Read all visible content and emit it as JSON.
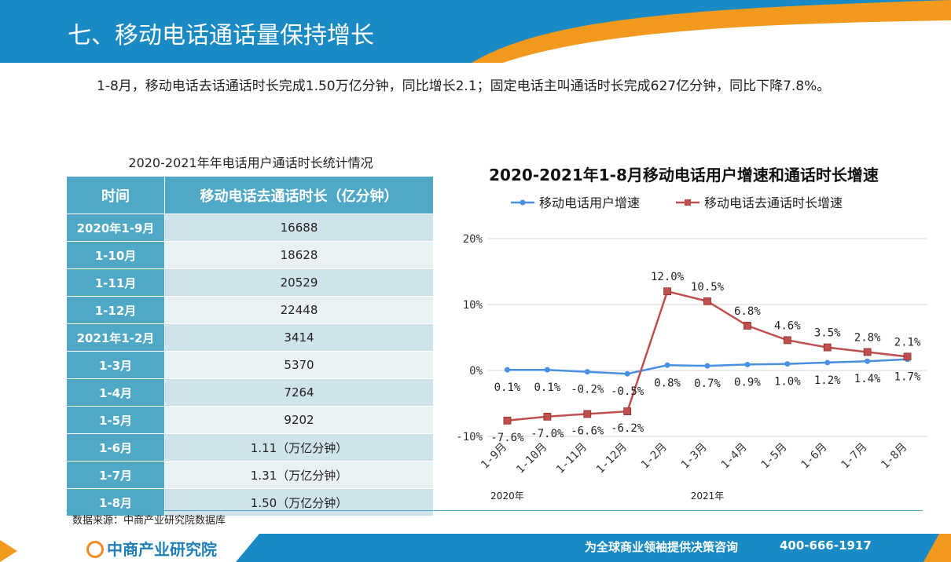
{
  "header": {
    "title": "七、移动电话通话量保持增长"
  },
  "intro": {
    "text": "1-8月，移动电话去话通话时长完成1.50万亿分钟，同比增长2.1；固定电话主叫通话时长完成627亿分钟，同比下降7.8%。"
  },
  "table": {
    "title": "2020-2021年年电话用户通话时长统计情况",
    "headers": [
      "时间",
      "移动电话去通话时长（亿分钟）"
    ],
    "rows": [
      [
        "2020年1-9月",
        "16688"
      ],
      [
        "1-10月",
        "18628"
      ],
      [
        "1-11月",
        "20529"
      ],
      [
        "1-12月",
        "22448"
      ],
      [
        "2021年1-2月",
        "3414"
      ],
      [
        "1-3月",
        "5370"
      ],
      [
        "1-4月",
        "7264"
      ],
      [
        "1-5月",
        "9202"
      ],
      [
        "1-6月",
        "1.11（万亿分钟）"
      ],
      [
        "1-7月",
        "1.31（万亿分钟）"
      ],
      [
        "1-8月",
        "1.50（万亿分钟）"
      ]
    ]
  },
  "source": "数据来源：中商产业研究院数据库",
  "footer": {
    "logo": "中商产业研究院",
    "slogan": "为全球商业领袖提供决策咨询",
    "phone": "400-666-1917"
  },
  "colors": {
    "header_blue": "#1a8ac4",
    "accent_orange": "#f39a1e",
    "table_blue": "#4fa9c6",
    "series_users": "#4a90e2",
    "series_minutes": "#c0504d"
  },
  "chart_data": {
    "type": "line",
    "title": "2020-2021年1-8月移动电话用户增速和通话时长增速",
    "categories": [
      "1-9月",
      "1-10月",
      "1-11月",
      "1-12月",
      "1-2月",
      "1-3月",
      "1-4月",
      "1-5月",
      "1-6月",
      "1-7月",
      "1-8月"
    ],
    "year_labels": [
      {
        "label": "2020年",
        "at": "1-9月"
      },
      {
        "label": "2021年",
        "at": "1-3月"
      }
    ],
    "series": [
      {
        "name": "移动电话用户增速",
        "values": [
          0.1,
          0.1,
          -0.2,
          -0.5,
          0.8,
          0.7,
          0.9,
          1.0,
          1.2,
          1.4,
          1.7
        ],
        "labels": [
          "0.1%",
          "0.1%",
          "-0.2%",
          "-0.5%",
          "0.8%",
          "0.7%",
          "0.9%",
          "1.0%",
          "1.2%",
          "1.4%",
          "1.7%"
        ],
        "color": "#4a90e2",
        "marker": "circle"
      },
      {
        "name": "移动电话去通话时长增速",
        "values": [
          -7.6,
          -7.0,
          -6.6,
          -6.2,
          12.0,
          10.5,
          6.8,
          4.6,
          3.5,
          2.8,
          2.1
        ],
        "labels": [
          "-7.6%",
          "-7.0%",
          "-6.6%",
          "-6.2%",
          "12.0%",
          "10.5%",
          "6.8%",
          "4.6%",
          "3.5%",
          "2.8%",
          "2.1%"
        ],
        "color": "#c0504d",
        "marker": "square"
      }
    ],
    "yticks": [
      "-10%",
      "0%",
      "10%",
      "20%"
    ],
    "ylim": [
      -10,
      20
    ],
    "grid": true,
    "legend": "top"
  }
}
